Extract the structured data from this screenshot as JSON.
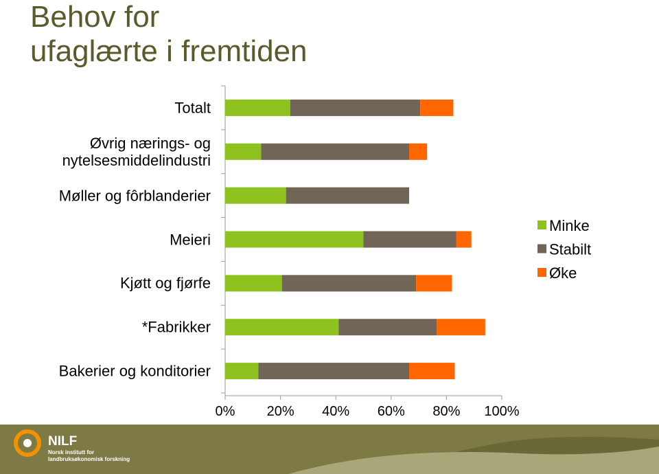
{
  "chart_data": {
    "type": "stacked-barh",
    "title": "Behov for\nufaglærte i fremtiden",
    "categories": [
      "Totalt",
      "Øvrig nærings- og\nnytelsesmiddelindustri",
      "Møller og fôrblanderier",
      "Meieri",
      "Kjøtt og fjørfe",
      "*Fabrikker",
      "Bakerier og konditorier"
    ],
    "series": [
      {
        "name": "Minke",
        "color": "#8dc21f",
        "values": [
          23.5,
          13,
          22,
          50,
          20.5,
          41,
          12
        ]
      },
      {
        "name": "Stabilt",
        "color": "#706556",
        "values": [
          47,
          53.5,
          44.5,
          33.5,
          48.5,
          35.5,
          54.5
        ]
      },
      {
        "name": "Øke",
        "color": "#ff6600",
        "values": [
          12,
          6.5,
          0,
          5.5,
          13,
          17.5,
          16.5
        ]
      }
    ],
    "xlim": [
      0,
      100
    ],
    "xticks": [
      {
        "value": 0,
        "label": "0%"
      },
      {
        "value": 20,
        "label": "20%"
      },
      {
        "value": 40,
        "label": "40%"
      },
      {
        "value": 60,
        "label": "60%"
      },
      {
        "value": 80,
        "label": "80%"
      },
      {
        "value": 100,
        "label": "100%"
      }
    ],
    "legend": "right"
  },
  "footer": {
    "logo": "NILF",
    "line1": "Norsk institutt for",
    "line2": "landbruksøkonomisk forskning"
  }
}
